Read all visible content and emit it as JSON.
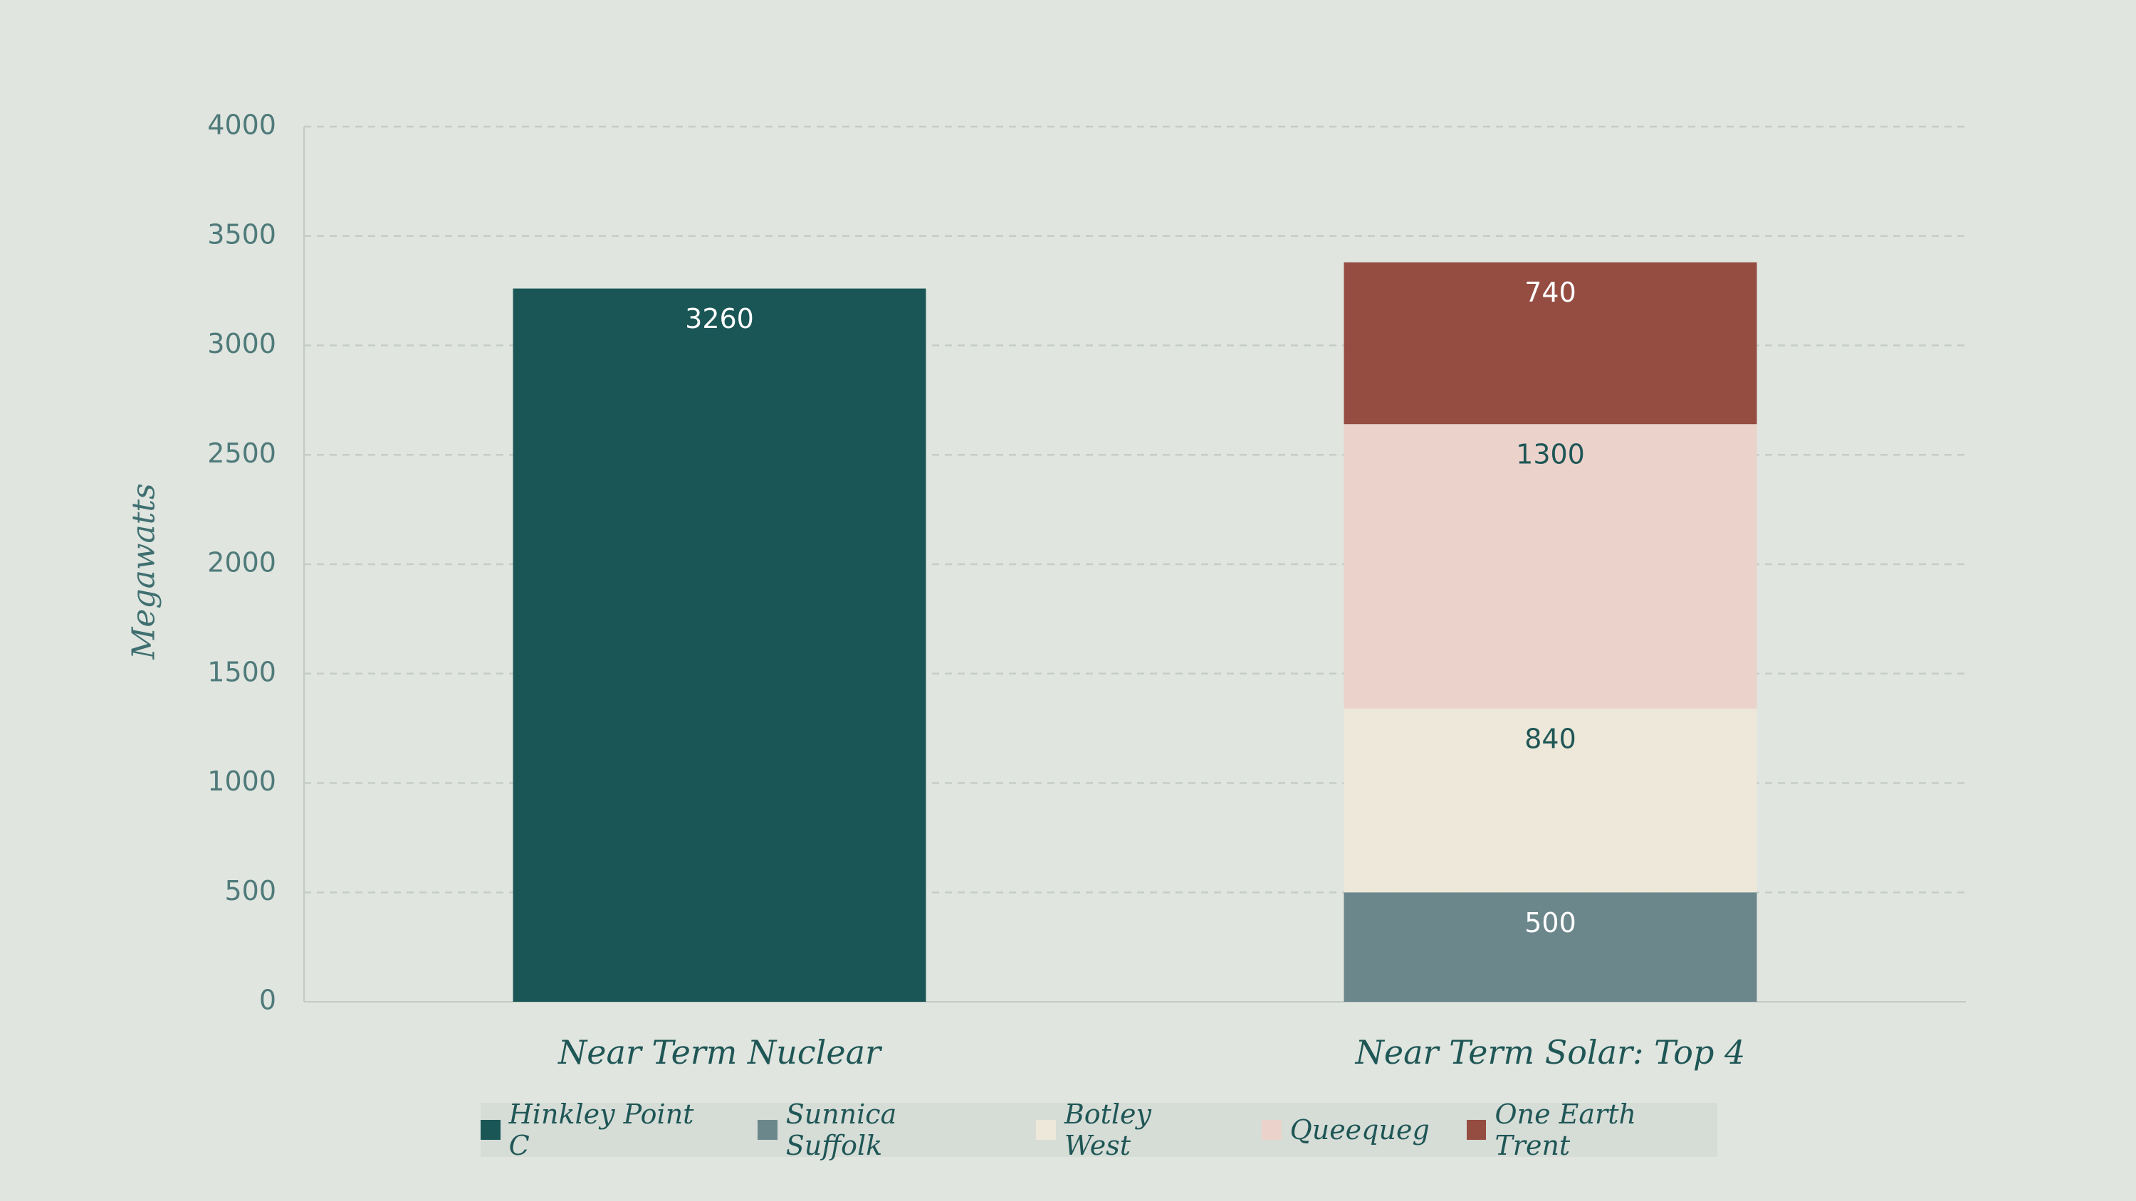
{
  "chart_data": {
    "type": "stacked_bar",
    "y_label": "Megawatts",
    "categories": [
      "Near Term Nuclear",
      "Near Term Solar: Top 4"
    ],
    "series": [
      {
        "name": "Hinkley Point C",
        "color": "#1a5656",
        "values": [
          3260,
          null
        ]
      },
      {
        "name": "Sunnica Suffolk",
        "color": "#6b878c",
        "values": [
          null,
          500
        ]
      },
      {
        "name": "Botley West",
        "color": "#ede8da",
        "values": [
          null,
          840
        ]
      },
      {
        "name": "Queequeg",
        "color": "#ebd2cb",
        "values": [
          null,
          1300
        ]
      },
      {
        "name": "One Earth Trent",
        "color": "#954d42",
        "values": [
          null,
          740
        ]
      }
    ],
    "ylim": [
      0,
      4000
    ],
    "yticks": [
      0,
      500,
      1000,
      1500,
      2000,
      2500,
      3000,
      3500,
      4000
    ],
    "grid": true,
    "legend": "bottom"
  }
}
